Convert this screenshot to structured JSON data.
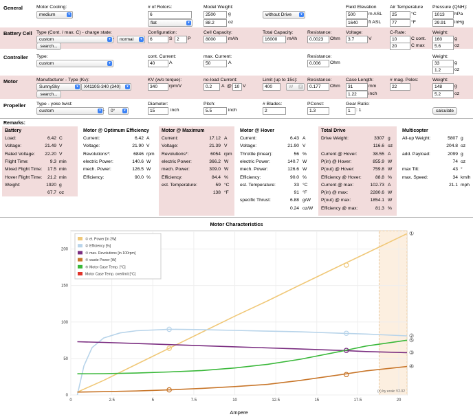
{
  "colors": {
    "pink": "#f2dcdc",
    "elPower": "#f0c878",
    "efficiency": "#b8d4ea",
    "revolutions": "#7a2d80",
    "waste": "#c8762a",
    "caseTemp": "#3ab83a",
    "overlimit": "#e0342a"
  },
  "general": {
    "section": "General",
    "motorCooling": {
      "label": "Motor Cooling:",
      "value": "medium"
    },
    "rotors": {
      "label": "# of Rotors:",
      "value": "6",
      "frame": "flat"
    },
    "weight": {
      "label": "Model Weight:",
      "g": "2500",
      "oz": "88.2",
      "unit_g": "g",
      "unit_oz": "oz"
    },
    "drive": "without Drive",
    "field": {
      "label": "Field Elevation",
      "m": "500",
      "ft": "1640",
      "unit_m": "m ASL",
      "unit_ft": "ft ASL"
    },
    "air": {
      "label": "Air Temperature",
      "c": "25",
      "f": "77",
      "unit_c": "°C",
      "unit_f": "°F"
    },
    "pressure": {
      "label": "Pressure (QNH):",
      "hpa": "1013",
      "inhg": "29.91",
      "unit_hpa": "hPa",
      "unit_inhg": "inHg"
    }
  },
  "battery": {
    "section": "Battery Cell",
    "type": {
      "label": "Type (Cont. / max. C) - charge state:",
      "value": "custom",
      "dash": "-",
      "charge": "normal"
    },
    "search": "search...",
    "config": {
      "label": "Configuration:",
      "s": "6",
      "s_unit": "S",
      "p": "2",
      "p_unit": "P"
    },
    "capacity": {
      "label": "Cell Capacity:",
      "value": "8000",
      "unit": "mAh"
    },
    "total": {
      "label": "Total Capacity:",
      "value": "16000",
      "unit": "mAh"
    },
    "resistance": {
      "label": "Resistance:",
      "value": "0.0023",
      "unit": "Ohm"
    },
    "voltage": {
      "label": "Voltage:",
      "value": "3.7",
      "unit": "V"
    },
    "crate": {
      "label": "C-Rate:",
      "cont": "10",
      "max": "20",
      "cont_unit": "C cont.",
      "max_unit": "C max"
    },
    "weight": {
      "label": "Weight:",
      "g": "160",
      "oz": "5.6",
      "unit_g": "g",
      "unit_oz": "oz"
    }
  },
  "controller": {
    "section": "Controller",
    "type": {
      "label": "Type:",
      "value": "custom"
    },
    "cont": {
      "label": "cont. Current:",
      "value": "40",
      "unit": "A"
    },
    "max": {
      "label": "max. Current:",
      "value": "50",
      "unit": "A"
    },
    "resistance": {
      "label": "Resistance:",
      "value": "0.006",
      "unit": "Ohm"
    },
    "weight": {
      "label": "Weight:",
      "g": "33",
      "oz": "1.2",
      "unit_g": "g",
      "unit_oz": "oz"
    }
  },
  "motor": {
    "section": "Motor",
    "manufacturer": {
      "label": "Manufacturer - Type (Kv):",
      "value": "SunnySky",
      "type": "X4110S-340 (340)"
    },
    "search": "search...",
    "kv": {
      "label": "KV (w/o torque):",
      "value": "340",
      "unit": "rpm/V"
    },
    "noload": {
      "label": "no-load Current:",
      "a": "0.2",
      "unit_a": "A",
      "at": "@",
      "v": "10",
      "unit_v": "V"
    },
    "limit": {
      "label": "Limit (up to 15s):",
      "value": "400",
      "unit": "W"
    },
    "resistance": {
      "label": "Resistance:",
      "value": "0.177",
      "unit": "Ohm"
    },
    "caselen": {
      "label": "Case Length:",
      "mm": "31",
      "inch": "1.22",
      "unit_mm": "mm",
      "unit_inch": "inch"
    },
    "poles": {
      "label": "# mag. Poles:",
      "value": "22"
    },
    "weight": {
      "label": "Weight:",
      "g": "148",
      "oz": "5.2",
      "unit_g": "g",
      "unit_oz": "oz"
    }
  },
  "propeller": {
    "section": "Propeller",
    "type": {
      "label": "Type - yoke twist:",
      "value": "custom",
      "dash": "-",
      "twist": "0°"
    },
    "diameter": {
      "label": "Diameter:",
      "value": "15",
      "unit": "inch"
    },
    "pitch": {
      "label": "Pitch:",
      "value": "5.5",
      "unit": "inch"
    },
    "blades": {
      "label": "# Blades:",
      "value": "2"
    },
    "pconst": {
      "label": "PConst:",
      "value": "1.3"
    },
    "gear": {
      "label": "Gear Ratio:",
      "value": "1",
      "ratio": ": 1"
    },
    "calculate": "calculate"
  },
  "remarks": "Remarks:",
  "results": {
    "battery": {
      "title": "Battery",
      "rows": [
        [
          "Load:",
          "6.42",
          "C"
        ],
        [
          "Voltage:",
          "21.49",
          "V"
        ],
        [
          "Rated Voltage:",
          "22.20",
          "V"
        ],
        [
          "Flight Time:",
          "9.3",
          "min"
        ],
        [
          "Mixed Flight Time:",
          "17.5",
          "min"
        ],
        [
          "Hover Flight Time:",
          "21.2",
          "min"
        ],
        [
          "Weight:",
          "1920",
          "g"
        ],
        [
          "",
          "67.7",
          "oz"
        ]
      ]
    },
    "optimum": {
      "title": "Motor @ Optimum Efficiency",
      "rows": [
        [
          "Current:",
          "6.42",
          "A"
        ],
        [
          "Voltage:",
          "21.90",
          "V"
        ],
        [
          "Revolutions*:",
          "6846",
          "rpm"
        ],
        [
          "electric Power:",
          "140.6",
          "W"
        ],
        [
          "mech. Power:",
          "126.5",
          "W"
        ],
        [
          "Efficiency:",
          "90.0",
          "%"
        ]
      ]
    },
    "maximum": {
      "title": "Motor @ Maximum",
      "rows": [
        [
          "Current:",
          "17.12",
          "A"
        ],
        [
          "Voltage:",
          "21.39",
          "V"
        ],
        [
          "Revolutions*:",
          "6054",
          "rpm"
        ],
        [
          "electric Power:",
          "366.2",
          "W"
        ],
        [
          "mech. Power:",
          "309.0",
          "W"
        ],
        [
          "Efficiency:",
          "84.4",
          "%"
        ],
        [
          "est. Temperature:",
          "59",
          "°C"
        ],
        [
          "",
          "138",
          "°F"
        ]
      ]
    },
    "hover": {
      "title": "Motor @ Hover",
      "rows": [
        [
          "Current:",
          "6.43",
          "A"
        ],
        [
          "Voltage:",
          "21.90",
          "V"
        ],
        [
          "Throttle (linear):",
          "56",
          "%"
        ],
        [
          "electric Power:",
          "140.7",
          "W"
        ],
        [
          "mech. Power:",
          "126.6",
          "W"
        ],
        [
          "Efficiency:",
          "90.0",
          "%"
        ],
        [
          "est. Temperature:",
          "33",
          "°C"
        ],
        [
          "",
          "91",
          "°F"
        ],
        [
          "specific Thrust:",
          "6.88",
          "g/W"
        ],
        [
          "",
          "0.24",
          "oz/W"
        ]
      ]
    },
    "drive": {
      "title": "Total Drive",
      "rows": [
        [
          "Drive Weight:",
          "3307",
          "g"
        ],
        [
          "",
          "116.6",
          "oz"
        ],
        [
          "Current @ Hover:",
          "38.55",
          "A"
        ],
        [
          "P(in) @ Hover:",
          "855.9",
          "W"
        ],
        [
          "P(out) @ Hover:",
          "759.8",
          "W"
        ],
        [
          "Efficiency @ Hover:",
          "88.8",
          "%"
        ],
        [
          "Current @ max:",
          "102.73",
          "A"
        ],
        [
          "P(in) @ max:",
          "2280.6",
          "W"
        ],
        [
          "P(out) @ max:",
          "1854.1",
          "W"
        ],
        [
          "Efficiency @ max:",
          "81.3",
          "%"
        ]
      ]
    },
    "multi": {
      "title": "Multicopter",
      "rows": [
        [
          "All-up Weight:",
          "5807",
          "g"
        ],
        [
          "",
          "204.8",
          "oz"
        ],
        [
          "add. Payload:",
          "2099",
          "g"
        ],
        [
          "",
          "74",
          "oz"
        ],
        [
          "max Tilt:",
          "43",
          "°"
        ],
        [
          "max. Speed:",
          "34",
          "km/h"
        ],
        [
          "",
          "21.1",
          "mph"
        ]
      ]
    }
  },
  "chart_data": {
    "type": "line",
    "title": "Motor Characteristics",
    "xlabel": "Ampere",
    "ylabel": "",
    "xlim": [
      0,
      20.5
    ],
    "ylim": [
      0,
      225
    ],
    "xticks": [
      0,
      2.5,
      5,
      7.5,
      10,
      12.5,
      15,
      17.5,
      20
    ],
    "yticks": [
      0,
      50,
      100,
      150,
      200
    ],
    "credit": "(c) by ecalc    V2.02",
    "max_shade": [
      18.8,
      20.5
    ],
    "series": [
      {
        "name": "① el. Power [in 2W]",
        "end": "①",
        "x": [
          0.4,
          2,
          4,
          6,
          8,
          10,
          12,
          14,
          16.5,
          18,
          20.5
        ],
        "y": [
          4,
          20,
          42,
          64,
          86,
          108,
          129,
          151,
          178,
          194,
          221
        ]
      },
      {
        "name": "② Efficiency [%]",
        "end": "②",
        "x": [
          0.4,
          0.8,
          1.3,
          2,
          3,
          4,
          6,
          8,
          10,
          12,
          14,
          16.5,
          18,
          20.5
        ],
        "y": [
          0,
          40,
          65,
          78,
          85,
          88,
          90,
          89.5,
          88.5,
          87.5,
          86.5,
          84.5,
          83.5,
          81
        ]
      },
      {
        "name": "③ max. Revolutions [in 100rpm]",
        "end": "③",
        "x": [
          0.4,
          2,
          4,
          6,
          8,
          10,
          12,
          14,
          16.5,
          18,
          20.5
        ],
        "y": [
          73,
          72,
          70.5,
          69,
          67.5,
          66,
          64.5,
          63,
          61,
          59.5,
          58
        ]
      },
      {
        "name": "④ waste Power [W]",
        "end": "④",
        "x": [
          0.4,
          2,
          4,
          6,
          8,
          10,
          12,
          14,
          16.5,
          18,
          20.5
        ],
        "y": [
          4,
          4.5,
          5.5,
          7,
          9,
          11.5,
          14.5,
          20,
          28,
          33,
          39
        ]
      },
      {
        "name": "⑤ Motor Case Temp. [°C]",
        "end": "⑤",
        "x": [
          0.4,
          2,
          4,
          6,
          8,
          10,
          12,
          14,
          16.5,
          18,
          20.5
        ],
        "y": [
          29,
          29.2,
          30,
          31.5,
          33.5,
          37,
          42,
          49,
          60,
          67,
          75
        ]
      },
      {
        "name": "Motor Case Temp. overlimit [°C]",
        "end": "",
        "x": [],
        "y": []
      }
    ],
    "markers": [
      {
        "series": 0,
        "x": 6,
        "y": 64
      },
      {
        "series": 0,
        "x": 16.8,
        "y": 178
      },
      {
        "series": 1,
        "x": 6,
        "y": 90
      },
      {
        "series": 1,
        "x": 16.8,
        "y": 84.5
      },
      {
        "series": 2,
        "x": 16.8,
        "y": 61
      },
      {
        "series": 3,
        "x": 6,
        "y": 7
      },
      {
        "series": 3,
        "x": 16.8,
        "y": 28
      }
    ]
  }
}
